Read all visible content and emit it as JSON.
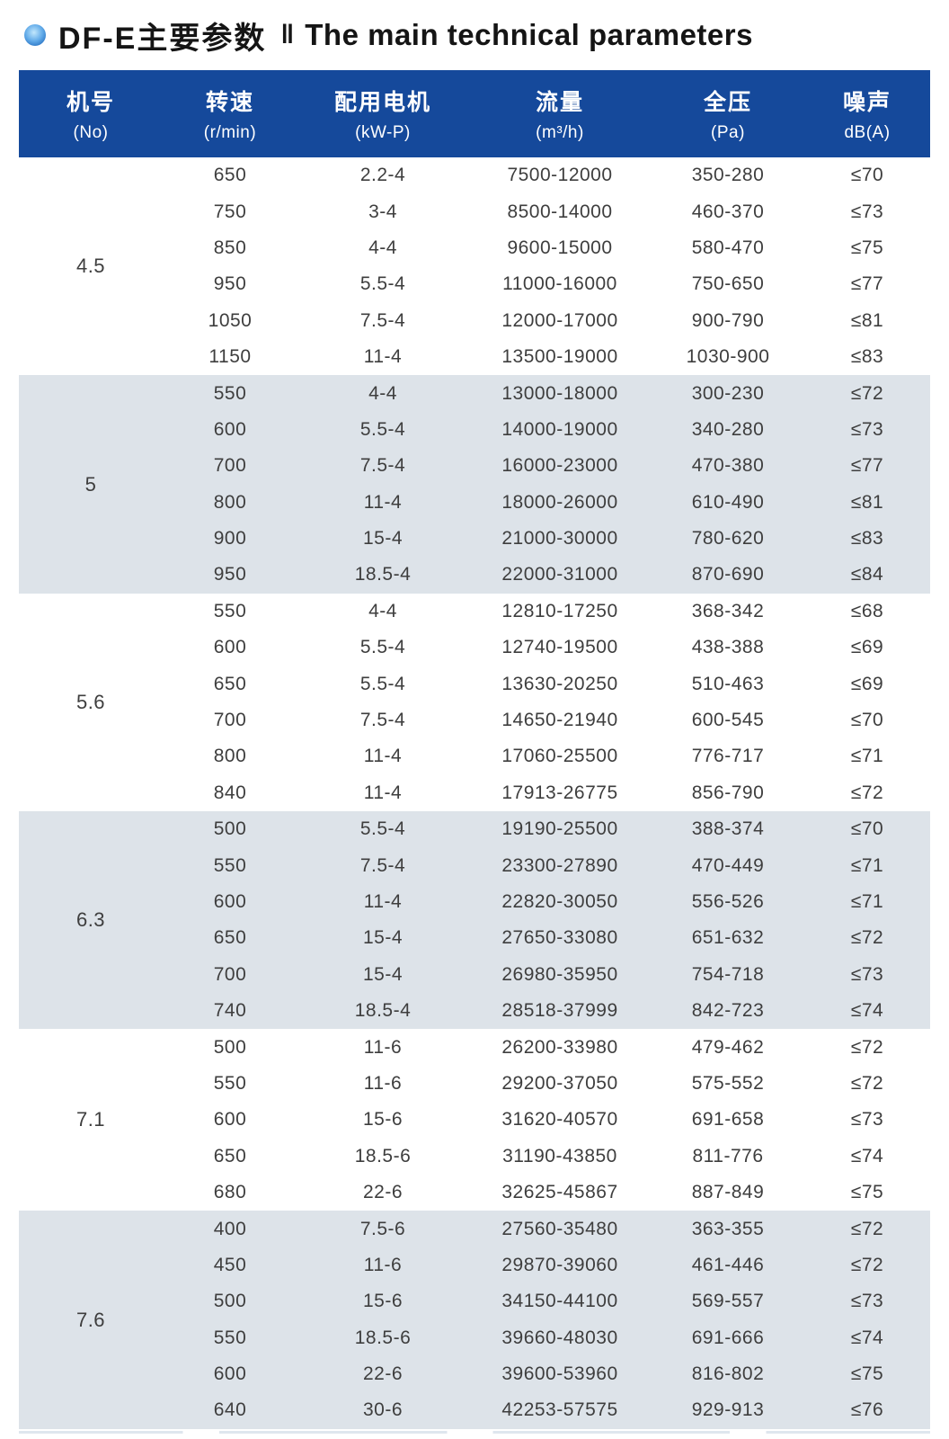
{
  "title": {
    "zh": "DF-E主要参数",
    "separator": "‖",
    "en": "The main technical parameters"
  },
  "colors": {
    "header_bg": "#15499b",
    "shaded_row_bg": "#dde3e9",
    "body_text": "#3e3e3e",
    "title_text": "#151515",
    "bullet_blue_dark": "#0d57b0",
    "bullet_blue_light": "#c2e7fc"
  },
  "icons": {
    "bullet": "blue-sphere-bullet-icon"
  },
  "table": {
    "columns": [
      {
        "zh": "机号",
        "sub": "(No)"
      },
      {
        "zh": "转速",
        "sub": "(r/min)"
      },
      {
        "zh": "配用电机",
        "sub": "(kW-P)"
      },
      {
        "zh": "流量",
        "sub": "(m³/h)"
      },
      {
        "zh": "全压",
        "sub": "(Pa)"
      },
      {
        "zh": "噪声",
        "sub": "dB(A)"
      }
    ],
    "groups": [
      {
        "no": "4.5",
        "shaded": false,
        "rows": [
          [
            "650",
            "2.2-4",
            "7500-12000",
            "350-280",
            "≤70"
          ],
          [
            "750",
            "3-4",
            "8500-14000",
            "460-370",
            "≤73"
          ],
          [
            "850",
            "4-4",
            "9600-15000",
            "580-470",
            "≤75"
          ],
          [
            "950",
            "5.5-4",
            "11000-16000",
            "750-650",
            "≤77"
          ],
          [
            "1050",
            "7.5-4",
            "12000-17000",
            "900-790",
            "≤81"
          ],
          [
            "1150",
            "11-4",
            "13500-19000",
            "1030-900",
            "≤83"
          ]
        ]
      },
      {
        "no": "5",
        "shaded": true,
        "rows": [
          [
            "550",
            "4-4",
            "13000-18000",
            "300-230",
            "≤72"
          ],
          [
            "600",
            "5.5-4",
            "14000-19000",
            "340-280",
            "≤73"
          ],
          [
            "700",
            "7.5-4",
            "16000-23000",
            "470-380",
            "≤77"
          ],
          [
            "800",
            "11-4",
            "18000-26000",
            "610-490",
            "≤81"
          ],
          [
            "900",
            "15-4",
            "21000-30000",
            "780-620",
            "≤83"
          ],
          [
            "950",
            "18.5-4",
            "22000-31000",
            "870-690",
            "≤84"
          ]
        ]
      },
      {
        "no": "5.6",
        "shaded": false,
        "rows": [
          [
            "550",
            "4-4",
            "12810-17250",
            "368-342",
            "≤68"
          ],
          [
            "600",
            "5.5-4",
            "12740-19500",
            "438-388",
            "≤69"
          ],
          [
            "650",
            "5.5-4",
            "13630-20250",
            "510-463",
            "≤69"
          ],
          [
            "700",
            "7.5-4",
            "14650-21940",
            "600-545",
            "≤70"
          ],
          [
            "800",
            "11-4",
            "17060-25500",
            "776-717",
            "≤71"
          ],
          [
            "840",
            "11-4",
            "17913-26775",
            "856-790",
            "≤72"
          ]
        ]
      },
      {
        "no": "6.3",
        "shaded": true,
        "rows": [
          [
            "500",
            "5.5-4",
            "19190-25500",
            "388-374",
            "≤70"
          ],
          [
            "550",
            "7.5-4",
            "23300-27890",
            "470-449",
            "≤71"
          ],
          [
            "600",
            "11-4",
            "22820-30050",
            "556-526",
            "≤71"
          ],
          [
            "650",
            "15-4",
            "27650-33080",
            "651-632",
            "≤72"
          ],
          [
            "700",
            "15-4",
            "26980-35950",
            "754-718",
            "≤73"
          ],
          [
            "740",
            "18.5-4",
            "28518-37999",
            "842-723",
            "≤74"
          ]
        ]
      },
      {
        "no": "7.1",
        "shaded": false,
        "rows": [
          [
            "500",
            "11-6",
            "26200-33980",
            "479-462",
            "≤72"
          ],
          [
            "550",
            "11-6",
            "29200-37050",
            "575-552",
            "≤72"
          ],
          [
            "600",
            "15-6",
            "31620-40570",
            "691-658",
            "≤73"
          ],
          [
            "650",
            "18.5-6",
            "31190-43850",
            "811-776",
            "≤74"
          ],
          [
            "680",
            "22-6",
            "32625-45867",
            "887-849",
            "≤75"
          ]
        ]
      },
      {
        "no": "7.6",
        "shaded": true,
        "rows": [
          [
            "400",
            "7.5-6",
            "27560-35480",
            "363-355",
            "≤72"
          ],
          [
            "450",
            "11-6",
            "29870-39060",
            "461-446",
            "≤72"
          ],
          [
            "500",
            "15-6",
            "34150-44100",
            "569-557",
            "≤73"
          ],
          [
            "550",
            "18.5-6",
            "39660-48030",
            "691-666",
            "≤74"
          ],
          [
            "600",
            "22-6",
            "39600-53960",
            "816-802",
            "≤75"
          ],
          [
            "640",
            "30-6",
            "42253-57575",
            "929-913",
            "≤76"
          ]
        ]
      }
    ]
  }
}
